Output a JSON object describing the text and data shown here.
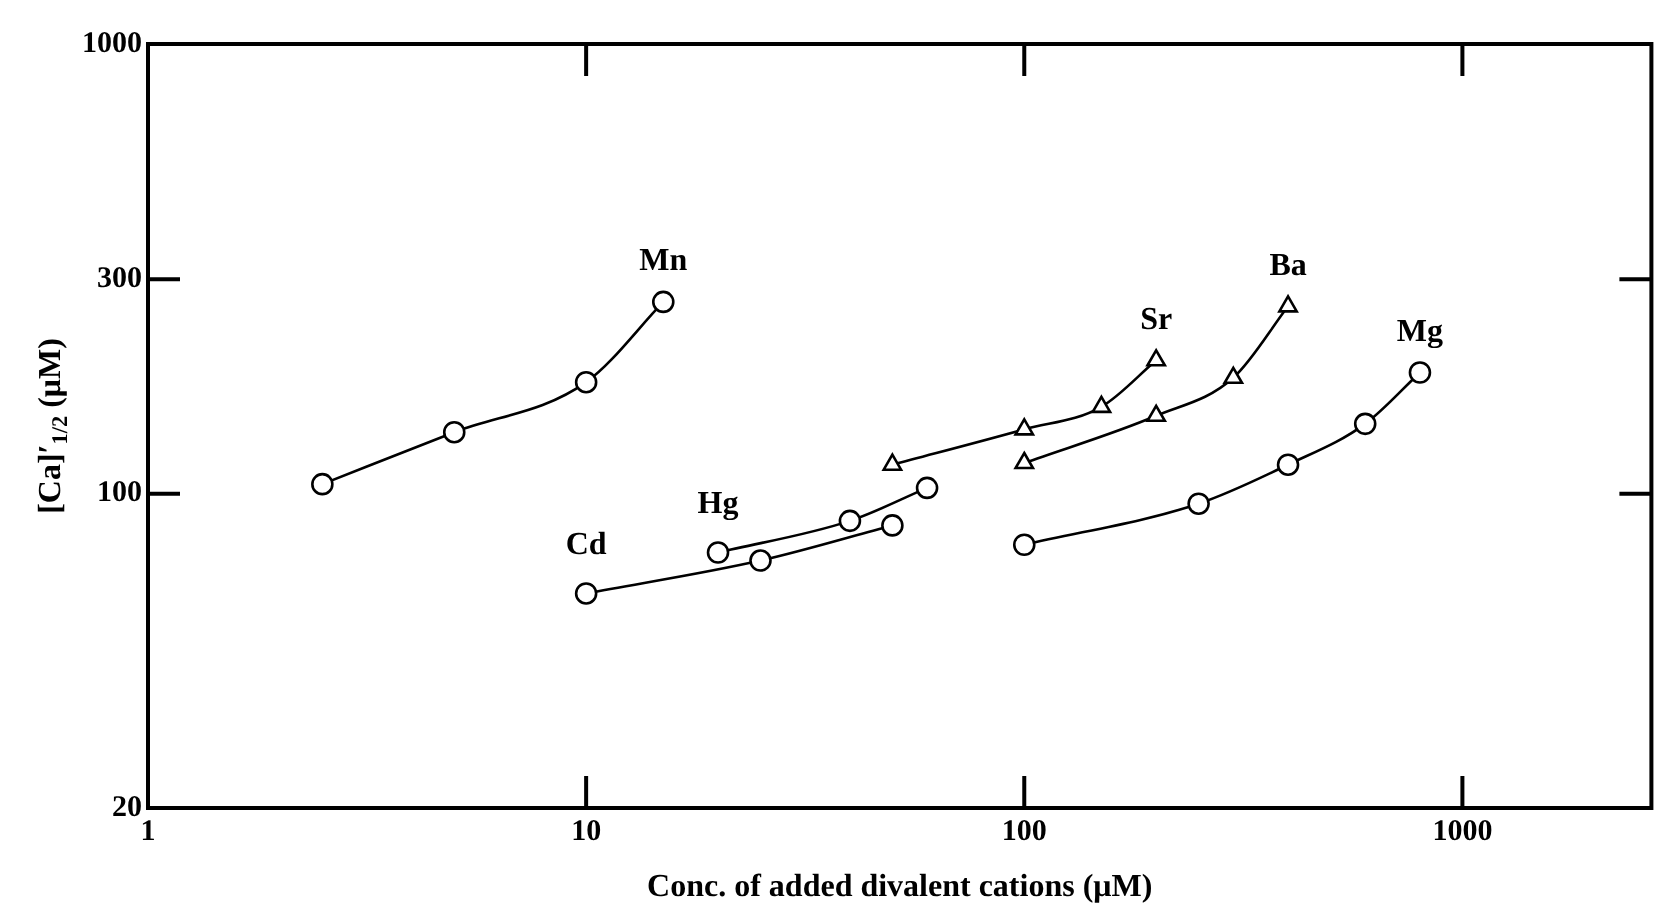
{
  "chart_data": {
    "type": "line",
    "xlabel": "Conc. of added divalent cations (μM)",
    "ylabel": "[Ca]′$_{1/2}$ (μM)",
    "log": "xy",
    "xlim": [
      1,
      2700
    ],
    "xticks": [
      1,
      10,
      100,
      1000
    ],
    "ylim": [
      20,
      1000
    ],
    "yticks": [
      20,
      100,
      300,
      1000
    ],
    "grid": false,
    "legend": false,
    "line_style": "solid",
    "series": [
      {
        "name": "Mn",
        "color": "#000000",
        "marker": "circle",
        "x": [
          2.5,
          5,
          10,
          15
        ],
        "values": [
          105,
          137,
          177,
          267
        ]
      },
      {
        "name": "Hg",
        "color": "#000000",
        "marker": "circle",
        "x": [
          20,
          40,
          60
        ],
        "values": [
          74,
          87,
          103
        ]
      },
      {
        "name": "Cd",
        "color": "#000000",
        "marker": "circle",
        "x": [
          10,
          25,
          50
        ],
        "values": [
          60,
          71,
          85
        ]
      },
      {
        "name": "Sr",
        "color": "#000000",
        "marker": "triangle",
        "x": [
          50,
          100,
          150,
          200
        ],
        "values": [
          116,
          139,
          156,
          198
        ]
      },
      {
        "name": "Ba",
        "color": "#000000",
        "marker": "triangle",
        "x": [
          100,
          200,
          300,
          400
        ],
        "values": [
          117,
          149,
          181,
          261
        ]
      },
      {
        "name": "Mg",
        "color": "#000000",
        "marker": "circle",
        "x": [
          100,
          250,
          400,
          600,
          800
        ],
        "values": [
          77,
          95,
          116,
          143,
          186
        ]
      }
    ]
  }
}
